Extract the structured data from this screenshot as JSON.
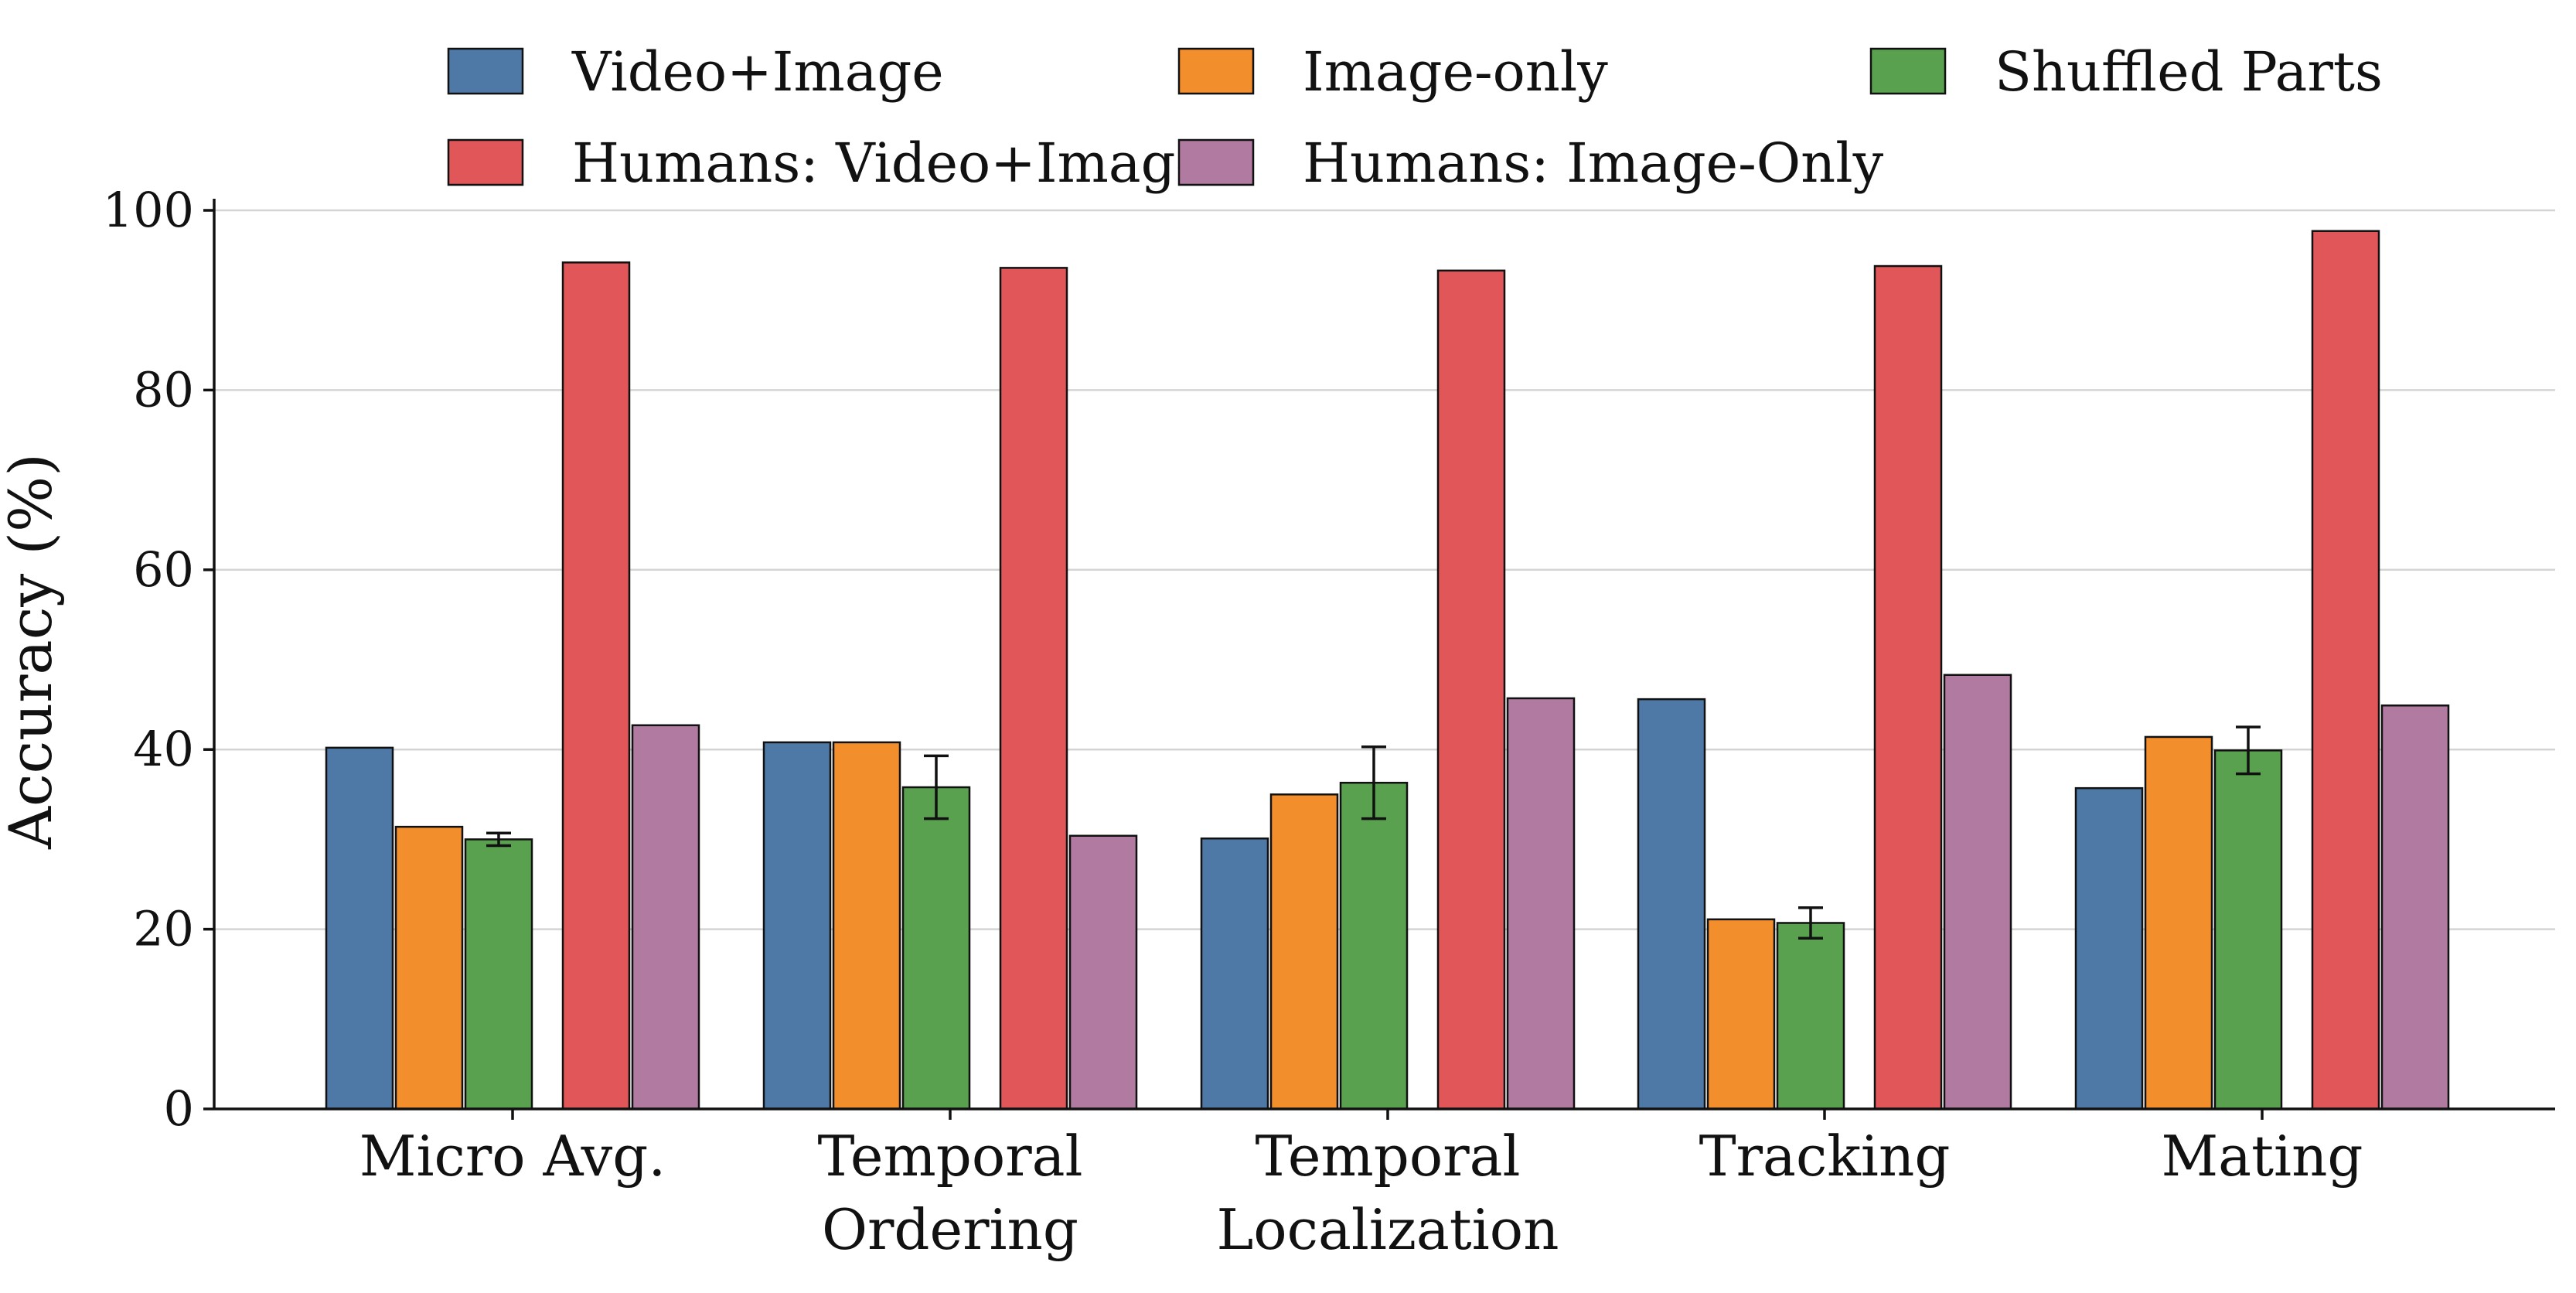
{
  "chart_data": {
    "type": "bar",
    "ylabel": "Accuracy (%)",
    "ylim": [
      0,
      100
    ],
    "yticks": [
      0,
      20,
      40,
      60,
      80,
      100
    ],
    "grid": "horizontal",
    "legend_placement": "top",
    "categories": [
      [
        "Micro Avg."
      ],
      [
        "Temporal",
        "Ordering"
      ],
      [
        "Temporal",
        "Localization"
      ],
      [
        "Tracking"
      ],
      [
        "Mating"
      ]
    ],
    "series": [
      {
        "name": "Video+Image",
        "color": "#4e79a7",
        "values": [
          40.2,
          40.8,
          30.1,
          45.6,
          35.7
        ]
      },
      {
        "name": "Image-only",
        "color": "#f28e2b",
        "values": [
          31.4,
          40.8,
          35.0,
          21.1,
          41.4
        ]
      },
      {
        "name": "Shuffled Parts",
        "color": "#59a14f",
        "values": [
          30.0,
          35.8,
          36.3,
          20.7,
          39.9
        ],
        "error": [
          0.7,
          3.5,
          4.0,
          1.7,
          2.6
        ]
      },
      {
        "name": "Humans: Video+Image",
        "color": "#e15759",
        "values": [
          94.2,
          93.6,
          93.3,
          93.8,
          97.7
        ]
      },
      {
        "name": "Humans: Image-Only",
        "color": "#b07aa1",
        "values": [
          42.7,
          30.4,
          45.7,
          48.3,
          44.9
        ]
      }
    ]
  }
}
